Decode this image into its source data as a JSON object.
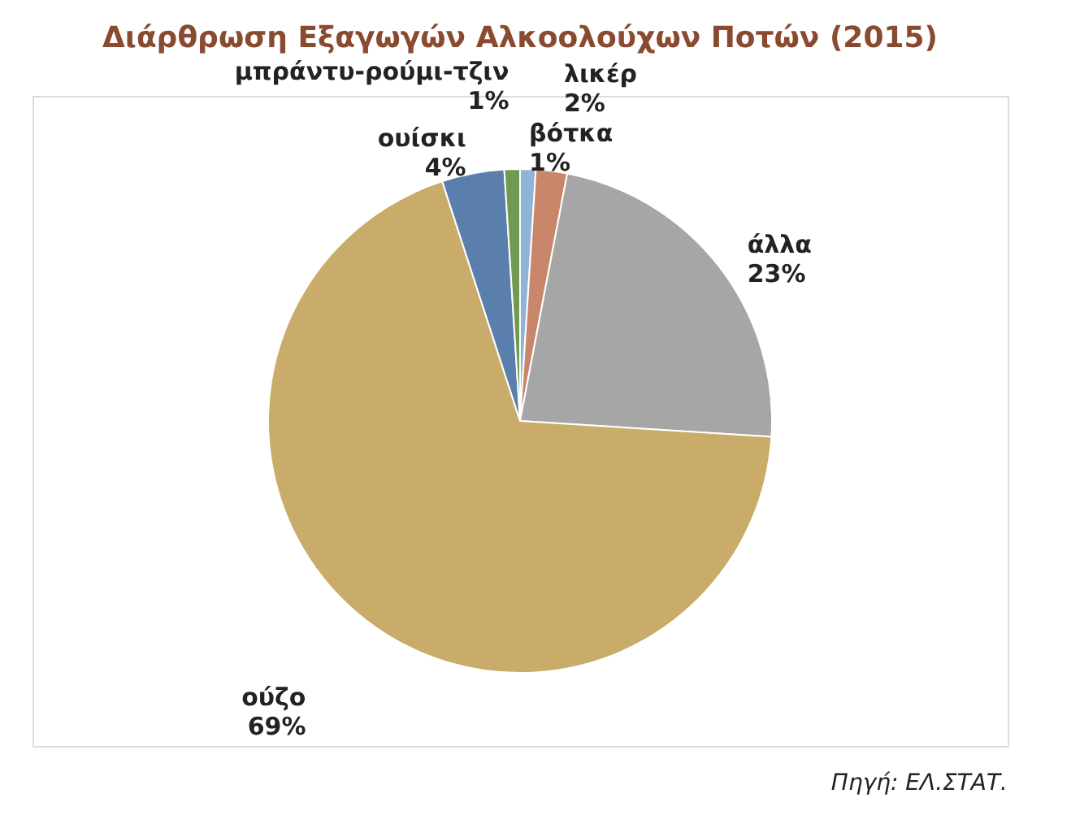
{
  "chart_data": {
    "type": "pie",
    "title": "Διάρθρωση Εξαγωγών Αλκοολούχων Ποτών (2015)",
    "categories": [
      "βότκα",
      "λικέρ",
      "άλλα",
      "ούζο",
      "ουίσκι",
      "μπράντυ-ρούμι-τζιν"
    ],
    "values": [
      1,
      2,
      23,
      69,
      4,
      1
    ],
    "value_labels": [
      "1%",
      "2%",
      "23%",
      "69%",
      "4%",
      "1%"
    ],
    "colors": [
      "#8fb4d8",
      "#c8866a",
      "#a6a6a6",
      "#c9ab6a",
      "#5b7fad",
      "#6f9a50"
    ],
    "annotations": [
      "Πηγή: ΕΛ.ΣΤΑΤ."
    ],
    "legend": false
  }
}
